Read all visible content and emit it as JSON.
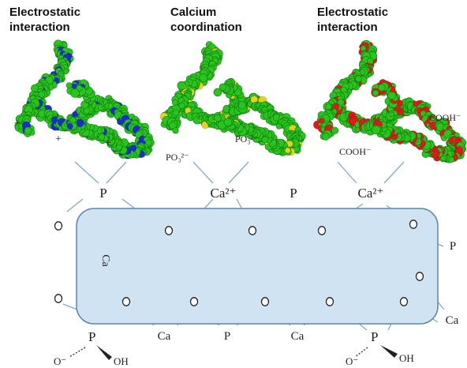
{
  "headings": [
    {
      "line1": "Electrostatic",
      "line2": "interaction"
    },
    {
      "line1": "Calcium",
      "line2": "coordination"
    },
    {
      "line1": "Electrostatic",
      "line2": "interaction"
    }
  ],
  "proteins": [
    {
      "accent_color": "#1a2ecc",
      "labels": [
        "+",
        "+",
        "+"
      ]
    },
    {
      "accent_color": "#e6d21e",
      "labels": [
        "PO₃²⁻",
        "PO₃²⁻"
      ]
    },
    {
      "accent_color": "#e01818",
      "labels": [
        "COOH⁻",
        "COOH⁻"
      ]
    }
  ],
  "protein_base_color": "#29c41e",
  "crystal": {
    "fill": "#cfe3f3",
    "stroke": "#5b86b0",
    "top_labels": [
      "P",
      "Ca²⁺",
      "P",
      "Ca²⁺"
    ],
    "side_labels": {
      "left": "Ca",
      "right": "P"
    },
    "bottom_labels": [
      "Ca",
      "P",
      "Ca",
      "Ca"
    ],
    "oxygen_symbol": "O",
    "phosphate_groups": [
      {
        "p": "P",
        "o_minus": "O⁻",
        "oh": "OH"
      },
      {
        "p": "P",
        "o_minus": "O⁻",
        "oh": "OH"
      }
    ]
  }
}
